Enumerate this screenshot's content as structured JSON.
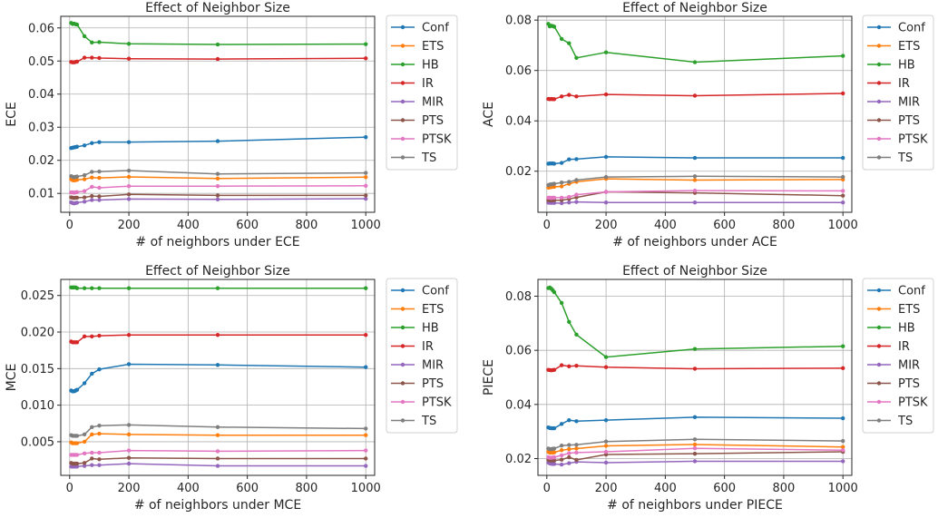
{
  "colors": {
    "Conf": "#1f77b4",
    "ETS": "#ff7f0e",
    "HB": "#2ca02c",
    "IR": "#d62728",
    "MIR": "#9467bd",
    "PTS": "#8c564b",
    "PTSK": "#e377c2",
    "TS": "#7f7f7f"
  },
  "chart_data": [
    {
      "type": "line",
      "title": "Effect of Neighbor Size",
      "xlabel": "# of neighbors under ECE",
      "ylabel": "ECE",
      "x": [
        5,
        10,
        15,
        20,
        25,
        50,
        75,
        100,
        200,
        500,
        1000
      ],
      "xlim": [
        -30,
        1030
      ],
      "ylim": [
        0.0043,
        0.0635
      ],
      "xticks": [
        0,
        200,
        400,
        600,
        800,
        1000
      ],
      "xticklabels": [
        "0",
        "200",
        "400",
        "600",
        "800",
        "1000"
      ],
      "yticks": [
        0.01,
        0.02,
        0.03,
        0.04,
        0.05,
        0.06
      ],
      "yticklabels": [
        "0.01",
        "0.02",
        "0.03",
        "0.04",
        "0.05",
        "0.06"
      ],
      "legend": "outside-right",
      "grid": true,
      "series": [
        {
          "name": "Conf",
          "values": [
            0.0237,
            0.0238,
            0.0239,
            0.024,
            0.0241,
            0.0245,
            0.0252,
            0.0255,
            0.0255,
            0.0258,
            0.027
          ]
        },
        {
          "name": "ETS",
          "values": [
            0.0143,
            0.014,
            0.0139,
            0.014,
            0.0141,
            0.0143,
            0.0148,
            0.0147,
            0.015,
            0.0145,
            0.0149
          ]
        },
        {
          "name": "HB",
          "values": [
            0.0615,
            0.0612,
            0.0613,
            0.0611,
            0.061,
            0.0575,
            0.0556,
            0.0557,
            0.0552,
            0.055,
            0.0551
          ]
        },
        {
          "name": "IR",
          "values": [
            0.0497,
            0.0496,
            0.0496,
            0.0497,
            0.0498,
            0.051,
            0.051,
            0.0509,
            0.0507,
            0.0506,
            0.0508
          ]
        },
        {
          "name": "MIR",
          "values": [
            0.0073,
            0.0071,
            0.007,
            0.0071,
            0.0072,
            0.0075,
            0.008,
            0.008,
            0.0083,
            0.0082,
            0.0084
          ]
        },
        {
          "name": "PTS",
          "values": [
            0.0088,
            0.0087,
            0.0086,
            0.0087,
            0.0087,
            0.0088,
            0.0092,
            0.0091,
            0.0097,
            0.0094,
            0.0094
          ]
        },
        {
          "name": "PTSK",
          "values": [
            0.0103,
            0.0103,
            0.0102,
            0.0103,
            0.0104,
            0.0107,
            0.012,
            0.0117,
            0.0122,
            0.0122,
            0.0123
          ]
        },
        {
          "name": "TS",
          "values": [
            0.0152,
            0.015,
            0.0149,
            0.015,
            0.0151,
            0.0155,
            0.0165,
            0.0166,
            0.0169,
            0.0159,
            0.0162
          ]
        }
      ]
    },
    {
      "type": "line",
      "title": "Effect of Neighbor Size",
      "xlabel": "# of neighbors under ACE",
      "ylabel": "ACE",
      "x": [
        5,
        10,
        15,
        20,
        25,
        50,
        75,
        100,
        200,
        500,
        1000
      ],
      "xlim": [
        -30,
        1030
      ],
      "ylim": [
        0.0037,
        0.0815
      ],
      "xticks": [
        0,
        200,
        400,
        600,
        800,
        1000
      ],
      "xticklabels": [
        "0",
        "200",
        "400",
        "600",
        "800",
        "1000"
      ],
      "yticks": [
        0.02,
        0.04,
        0.06,
        0.08
      ],
      "yticklabels": [
        "0.02",
        "0.04",
        "0.06",
        "0.08"
      ],
      "legend": "outside-right",
      "grid": true,
      "series": [
        {
          "name": "Conf",
          "values": [
            0.023,
            0.0231,
            0.0231,
            0.0231,
            0.023,
            0.0233,
            0.0247,
            0.0248,
            0.0257,
            0.0253,
            0.0253
          ]
        },
        {
          "name": "ETS",
          "values": [
            0.0135,
            0.0136,
            0.0137,
            0.0138,
            0.0138,
            0.014,
            0.015,
            0.0158,
            0.017,
            0.0165,
            0.0167
          ]
        },
        {
          "name": "HB",
          "values": [
            0.0785,
            0.0775,
            0.0778,
            0.0776,
            0.0774,
            0.0725,
            0.0708,
            0.065,
            0.0672,
            0.0633,
            0.0658
          ]
        },
        {
          "name": "IR",
          "values": [
            0.0487,
            0.0486,
            0.0487,
            0.0486,
            0.0486,
            0.0497,
            0.0503,
            0.0497,
            0.0505,
            0.05,
            0.0509
          ]
        },
        {
          "name": "MIR",
          "values": [
            0.0075,
            0.0075,
            0.0074,
            0.0075,
            0.0074,
            0.0073,
            0.0076,
            0.0078,
            0.0076,
            0.0076,
            0.0076
          ]
        },
        {
          "name": "PTS",
          "values": [
            0.0085,
            0.0085,
            0.0084,
            0.0085,
            0.0085,
            0.0085,
            0.009,
            0.0096,
            0.0118,
            0.0114,
            0.0103
          ]
        },
        {
          "name": "PTSK",
          "values": [
            0.0095,
            0.0095,
            0.0094,
            0.0095,
            0.0095,
            0.0095,
            0.0098,
            0.0107,
            0.0118,
            0.0123,
            0.0122
          ]
        },
        {
          "name": "TS",
          "values": [
            0.0145,
            0.0147,
            0.0148,
            0.0149,
            0.015,
            0.0155,
            0.0158,
            0.0165,
            0.0177,
            0.018,
            0.0177
          ]
        }
      ]
    },
    {
      "type": "line",
      "title": "Effect of Neighbor Size",
      "xlabel": "# of neighbors under MCE",
      "ylabel": "MCE",
      "x": [
        5,
        10,
        15,
        20,
        25,
        50,
        75,
        100,
        200,
        500,
        1000
      ],
      "xlim": [
        -30,
        1030
      ],
      "ylim": [
        0.0004,
        0.0272
      ],
      "xticks": [
        0,
        200,
        400,
        600,
        800,
        1000
      ],
      "xticklabels": [
        "0",
        "200",
        "400",
        "600",
        "800",
        "1000"
      ],
      "yticks": [
        0.005,
        0.01,
        0.015,
        0.02,
        0.025
      ],
      "yticklabels": [
        "0.005",
        "0.010",
        "0.015",
        "0.020",
        "0.025"
      ],
      "legend": "outside-right",
      "grid": true,
      "series": [
        {
          "name": "Conf",
          "values": [
            0.012,
            0.0119,
            0.0119,
            0.012,
            0.0121,
            0.013,
            0.0143,
            0.0149,
            0.0156,
            0.0155,
            0.0152
          ]
        },
        {
          "name": "ETS",
          "values": [
            0.0049,
            0.0048,
            0.0048,
            0.0048,
            0.0048,
            0.005,
            0.006,
            0.0061,
            0.006,
            0.0059,
            0.0059
          ]
        },
        {
          "name": "HB",
          "values": [
            0.0261,
            0.0261,
            0.0261,
            0.0261,
            0.026,
            0.026,
            0.026,
            0.026,
            0.026,
            0.026,
            0.026
          ]
        },
        {
          "name": "IR",
          "values": [
            0.0187,
            0.0186,
            0.0186,
            0.0186,
            0.0186,
            0.0194,
            0.0194,
            0.0195,
            0.0196,
            0.0196,
            0.0196
          ]
        },
        {
          "name": "MIR",
          "values": [
            0.0016,
            0.0016,
            0.0016,
            0.0016,
            0.0016,
            0.0017,
            0.0018,
            0.0018,
            0.002,
            0.0017,
            0.0017
          ]
        },
        {
          "name": "PTS",
          "values": [
            0.0021,
            0.002,
            0.002,
            0.002,
            0.002,
            0.0021,
            0.0027,
            0.0026,
            0.0028,
            0.0027,
            0.0027
          ]
        },
        {
          "name": "PTSK",
          "values": [
            0.0032,
            0.0032,
            0.0032,
            0.0032,
            0.0032,
            0.0034,
            0.0035,
            0.0035,
            0.0038,
            0.0037,
            0.0038
          ]
        },
        {
          "name": "TS",
          "values": [
            0.0059,
            0.0058,
            0.0058,
            0.0058,
            0.0058,
            0.006,
            0.007,
            0.0072,
            0.0073,
            0.007,
            0.0068
          ]
        }
      ]
    },
    {
      "type": "line",
      "title": "Effect of Neighbor Size",
      "xlabel": "# of neighbors under PIECE",
      "ylabel": "PIECE",
      "x": [
        5,
        10,
        15,
        20,
        25,
        50,
        75,
        100,
        200,
        500,
        1000
      ],
      "xlim": [
        -30,
        1030
      ],
      "ylim": [
        0.0138,
        0.0862
      ],
      "xticks": [
        0,
        200,
        400,
        600,
        800,
        1000
      ],
      "xticklabels": [
        "0",
        "200",
        "400",
        "600",
        "800",
        "1000"
      ],
      "yticks": [
        0.02,
        0.04,
        0.06,
        0.08
      ],
      "yticklabels": [
        "0.02",
        "0.04",
        "0.06",
        "0.08"
      ],
      "legend": "outside-right",
      "grid": true,
      "series": [
        {
          "name": "Conf",
          "values": [
            0.0315,
            0.0313,
            0.0312,
            0.0312,
            0.0312,
            0.0328,
            0.0342,
            0.0338,
            0.0342,
            0.0353,
            0.0349
          ]
        },
        {
          "name": "ETS",
          "values": [
            0.0225,
            0.0222,
            0.0222,
            0.0222,
            0.0223,
            0.0231,
            0.0235,
            0.0237,
            0.0247,
            0.0252,
            0.0243
          ]
        },
        {
          "name": "HB",
          "values": [
            0.083,
            0.0832,
            0.0828,
            0.0822,
            0.0815,
            0.0775,
            0.0705,
            0.0658,
            0.0575,
            0.0605,
            0.0615
          ]
        },
        {
          "name": "IR",
          "values": [
            0.0528,
            0.0527,
            0.0526,
            0.0527,
            0.0528,
            0.0545,
            0.0541,
            0.0543,
            0.0538,
            0.0532,
            0.0534
          ]
        },
        {
          "name": "MIR",
          "values": [
            0.0185,
            0.0182,
            0.0181,
            0.018,
            0.018,
            0.0178,
            0.0183,
            0.0188,
            0.0185,
            0.019,
            0.019
          ]
        },
        {
          "name": "PTS",
          "values": [
            0.0195,
            0.0193,
            0.0193,
            0.0193,
            0.0193,
            0.0196,
            0.0205,
            0.0195,
            0.0215,
            0.0218,
            0.0225
          ]
        },
        {
          "name": "PTSK",
          "values": [
            0.0205,
            0.0203,
            0.0203,
            0.0204,
            0.0205,
            0.0212,
            0.022,
            0.0222,
            0.0225,
            0.0238,
            0.0231
          ]
        },
        {
          "name": "TS",
          "values": [
            0.0237,
            0.0235,
            0.0235,
            0.0236,
            0.0237,
            0.0248,
            0.025,
            0.0251,
            0.0263,
            0.0271,
            0.0265
          ]
        }
      ]
    }
  ]
}
